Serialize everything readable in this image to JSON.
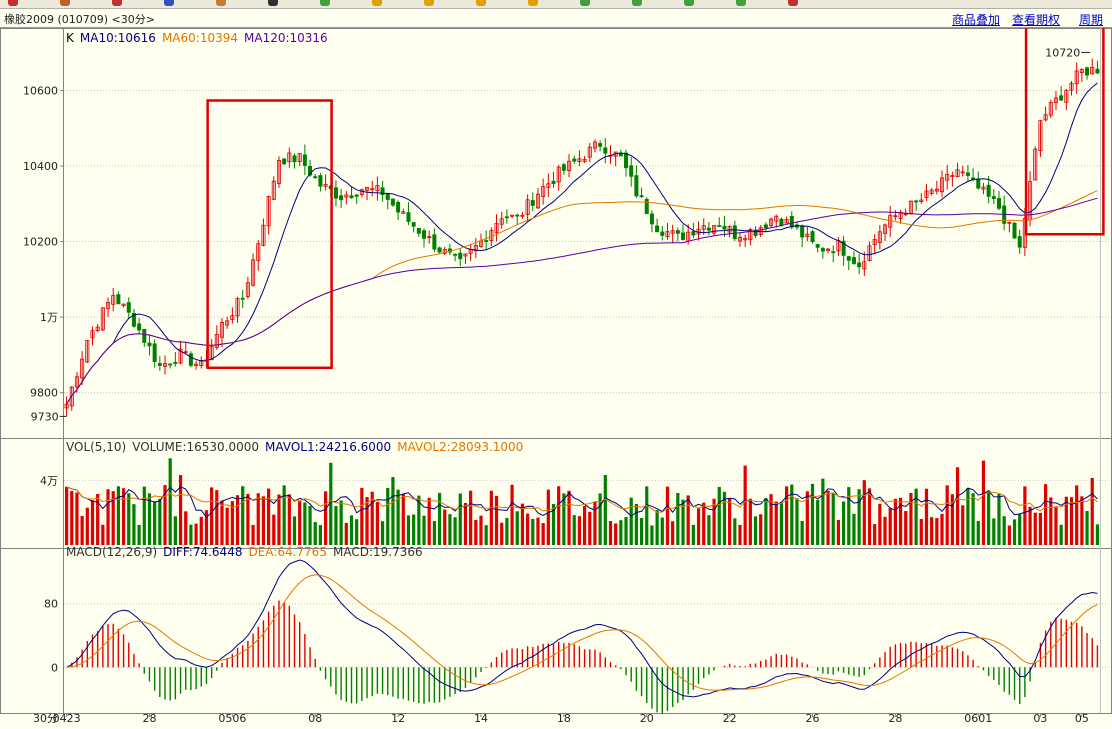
{
  "app": {
    "title": "橡胶2009 (010709) <30分>",
    "links": [
      "商品叠加",
      "查看期权",
      "周期"
    ]
  },
  "price_panel": {
    "legend": [
      {
        "text": "K",
        "color": "#000000"
      },
      {
        "text": "MA10:10616",
        "color": "#000080"
      },
      {
        "text": "MA60:10394",
        "color": "#e07800"
      },
      {
        "text": "MA120:10316",
        "color": "#5a00a0"
      }
    ],
    "y_ticks": [
      {
        "v": 10600,
        "label": "10600"
      },
      {
        "v": 10400,
        "label": "10400"
      },
      {
        "v": 10200,
        "label": "10200"
      },
      {
        "v": 10000,
        "label": "1万"
      },
      {
        "v": 9800,
        "label": "9800"
      }
    ],
    "low_label": "9730",
    "high_label": "10720"
  },
  "volume_panel": {
    "legend": [
      {
        "text": "VOL(5,10)",
        "color": "#333333"
      },
      {
        "text": "VOLUME:16530.0000",
        "color": "#333333"
      },
      {
        "text": "MAVOL1:24216.6000",
        "color": "#000080"
      },
      {
        "text": "MAVOL2:28093.1000",
        "color": "#e07800"
      }
    ],
    "y_ticks": [
      {
        "v": 40000,
        "label": "4万"
      }
    ]
  },
  "macd_panel": {
    "legend": [
      {
        "text": "MACD(12,26,9)",
        "color": "#333333"
      },
      {
        "text": "DIFF:74.6448",
        "color": "#000080"
      },
      {
        "text": "DEA:64.7765",
        "color": "#e07800"
      },
      {
        "text": "MACD:19.7366",
        "color": "#333333"
      }
    ],
    "y_ticks": [
      {
        "v": 80,
        "label": "80"
      },
      {
        "v": 0,
        "label": "0"
      }
    ]
  },
  "x_axis": {
    "period_label": "30分",
    "ticks": [
      "0423",
      "28",
      "0506",
      "08",
      "12",
      "14",
      "18",
      "20",
      "22",
      "26",
      "28",
      "0601",
      "03",
      "05"
    ]
  },
  "colors": {
    "up": "#e00000",
    "down": "#008000",
    "ma10": "#000080",
    "ma60": "#e07800",
    "ma120": "#5a00a0",
    "highlight": "#e00000"
  },
  "chart_data": {
    "type": "candlestick",
    "price": {
      "ylim": [
        9680,
        10760
      ]
    },
    "volume": {
      "ylim": [
        0,
        60000
      ]
    },
    "macd": {
      "ylim": [
        -55,
        140
      ]
    },
    "path_points": [
      [
        0,
        9770
      ],
      [
        4,
        9940
      ],
      [
        9,
        10060
      ],
      [
        13,
        9990
      ],
      [
        18,
        9870
      ],
      [
        22,
        9900
      ],
      [
        26,
        9870
      ],
      [
        30,
        9980
      ],
      [
        34,
        10050
      ],
      [
        37,
        10200
      ],
      [
        41,
        10420
      ],
      [
        45,
        10420
      ],
      [
        49,
        10350
      ],
      [
        53,
        10320
      ],
      [
        57,
        10340
      ],
      [
        61,
        10330
      ],
      [
        64,
        10280
      ],
      [
        68,
        10230
      ],
      [
        72,
        10180
      ],
      [
        76,
        10140
      ],
      [
        80,
        10200
      ],
      [
        84,
        10270
      ],
      [
        87,
        10260
      ],
      [
        91,
        10330
      ],
      [
        95,
        10380
      ],
      [
        99,
        10420
      ],
      [
        103,
        10460
      ],
      [
        107,
        10420
      ],
      [
        110,
        10330
      ],
      [
        114,
        10240
      ],
      [
        118,
        10210
      ],
      [
        122,
        10240
      ],
      [
        126,
        10250
      ],
      [
        129,
        10220
      ],
      [
        133,
        10230
      ],
      [
        137,
        10270
      ],
      [
        141,
        10230
      ],
      [
        145,
        10180
      ],
      [
        149,
        10190
      ],
      [
        153,
        10140
      ],
      [
        157,
        10230
      ],
      [
        161,
        10280
      ],
      [
        164,
        10300
      ],
      [
        168,
        10340
      ],
      [
        172,
        10390
      ],
      [
        176,
        10340
      ],
      [
        180,
        10290
      ],
      [
        184,
        10180
      ],
      [
        188,
        10520
      ],
      [
        192,
        10590
      ],
      [
        196,
        10650
      ],
      [
        200,
        10660
      ]
    ],
    "last_values": {
      "ma10": 10616,
      "ma60": 10394,
      "ma120": 10316,
      "volume": 16530,
      "mavol1": 24216.6,
      "mavol2": 28093.1,
      "diff": 74.6448,
      "dea": 64.7765,
      "macd": 19.7366
    },
    "highlight_ranges": [
      [
        28,
        50
      ],
      [
        186,
        199
      ]
    ]
  }
}
